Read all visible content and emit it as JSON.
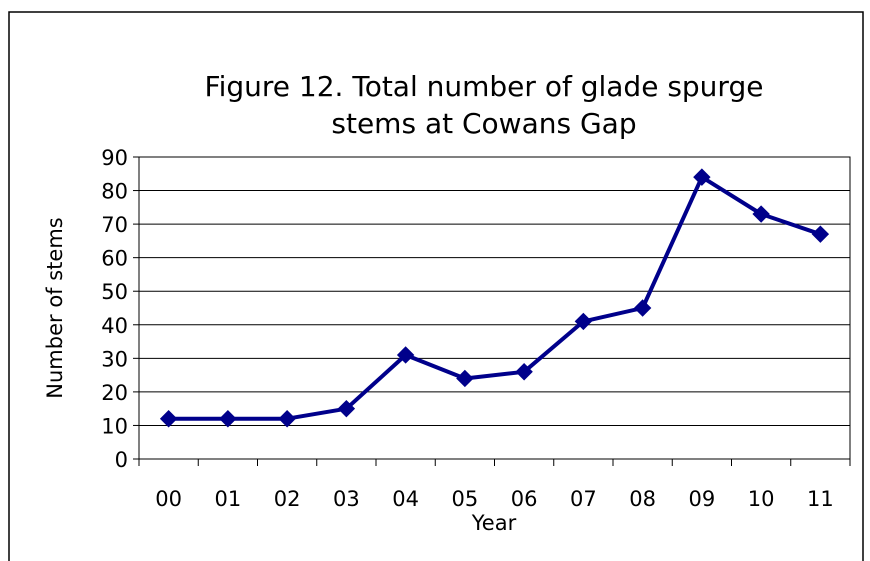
{
  "chart_data": {
    "type": "line",
    "title_lines": [
      "Figure 12. Total number of glade spurge",
      "stems at Cowans Gap"
    ],
    "xlabel": "Year",
    "ylabel": "Number of stems",
    "categories": [
      "00",
      "01",
      "02",
      "03",
      "04",
      "05",
      "06",
      "07",
      "08",
      "09",
      "10",
      "11"
    ],
    "series": [
      {
        "values": [
          12,
          12,
          12,
          15,
          31,
          24,
          26,
          41,
          45,
          84,
          73,
          67
        ]
      }
    ],
    "ylim": [
      0,
      90
    ],
    "yticks": [
      "0",
      "10",
      "20",
      "30",
      "40",
      "50",
      "60",
      "70",
      "80",
      "90"
    ],
    "grid": true,
    "legend": "none",
    "colors": {
      "series": "#00008B",
      "grid": "#000000"
    }
  }
}
